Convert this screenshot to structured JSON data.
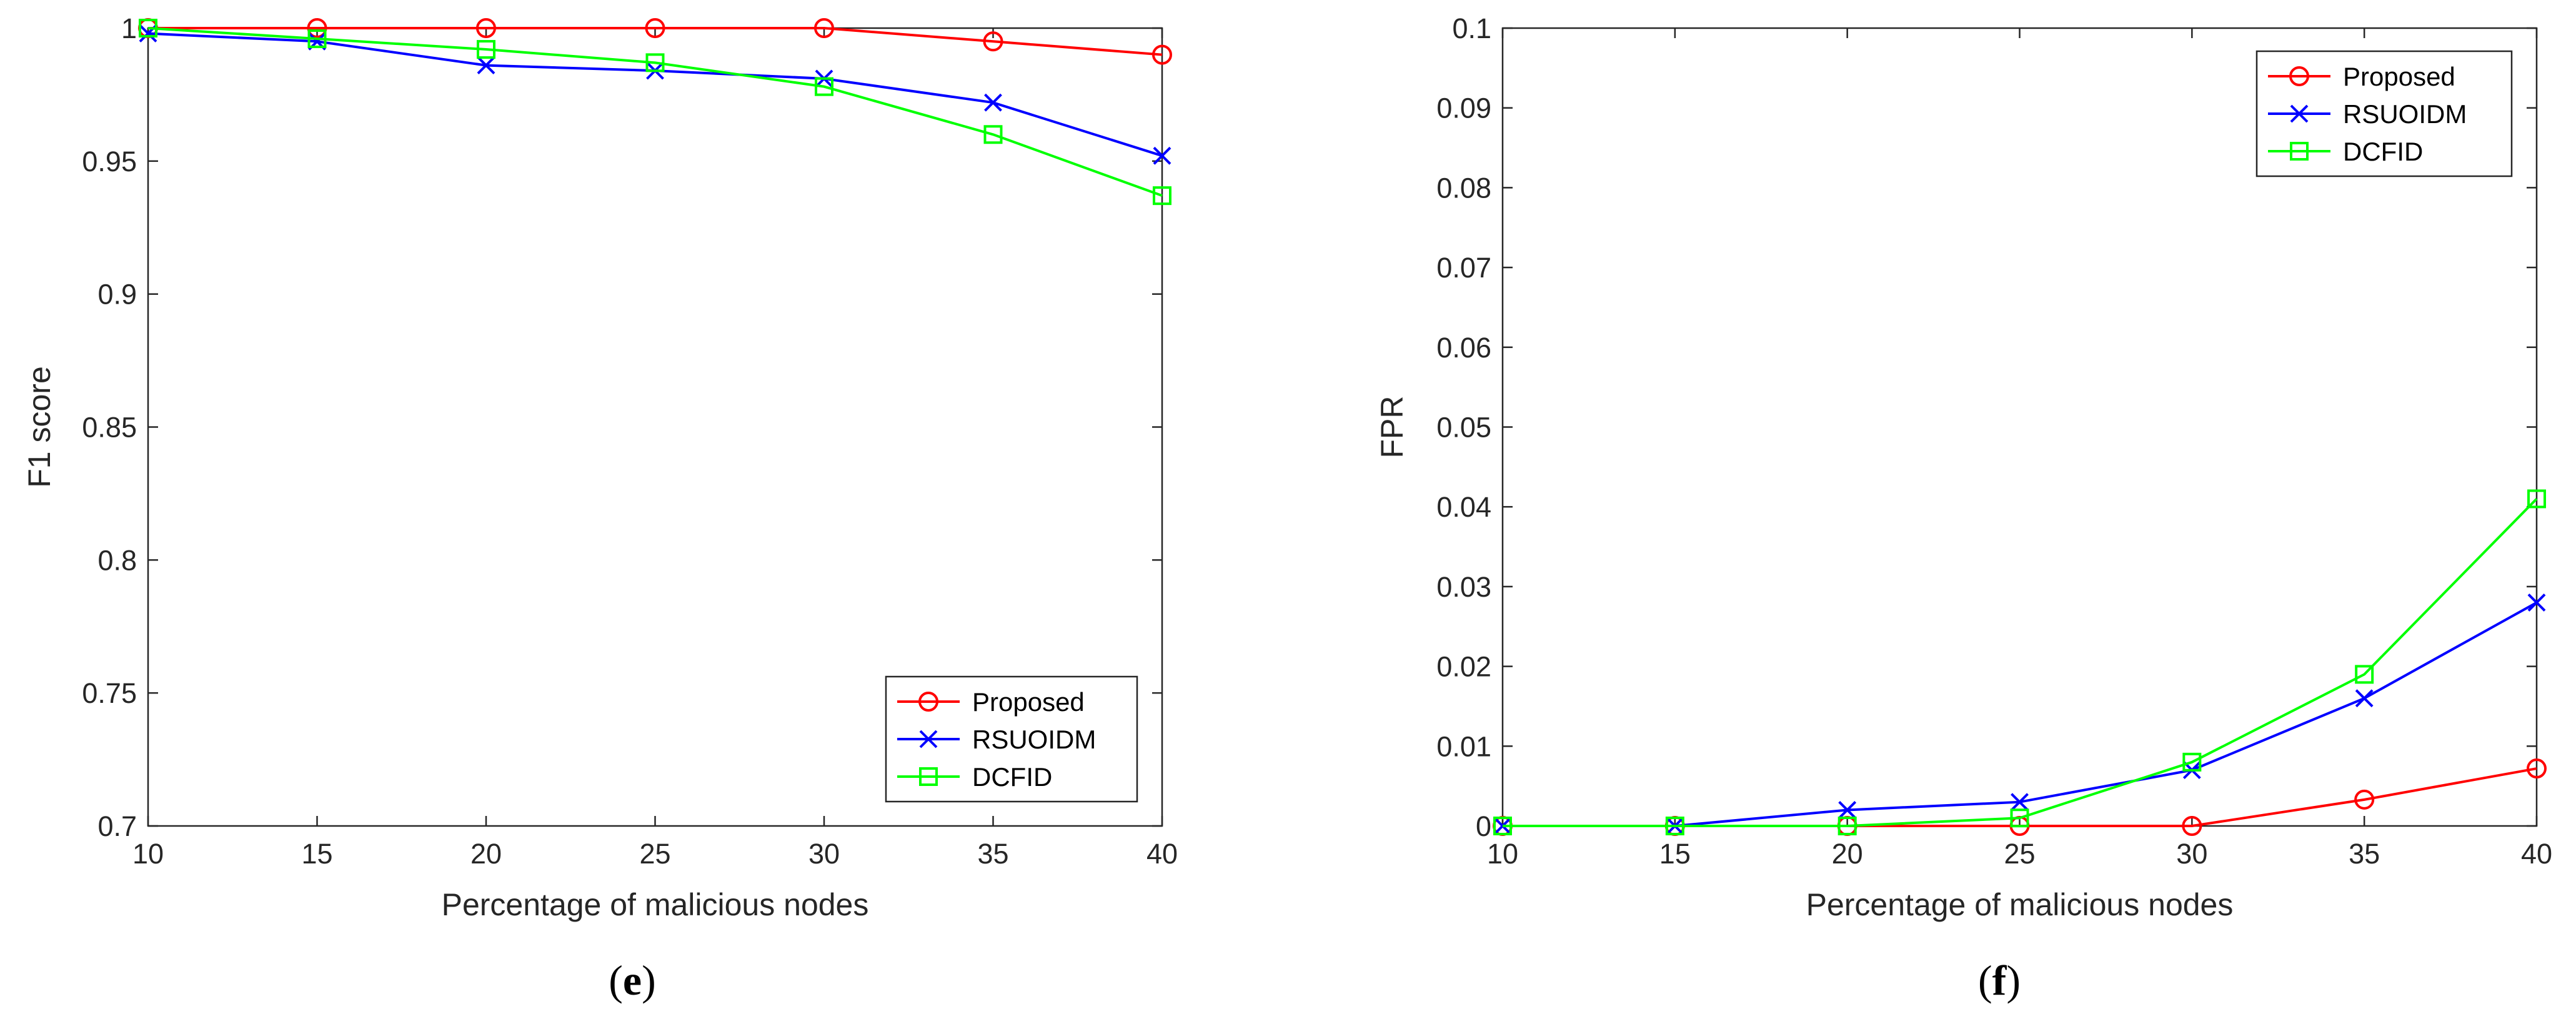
{
  "colors": {
    "proposed": "#ff0000",
    "rsuoidm": "#0000ff",
    "dcfid": "#00ff00",
    "axis": "#262626"
  },
  "chart_data": [
    {
      "type": "line",
      "caption": {
        "open": "(",
        "letter": "e",
        "close": ")"
      },
      "title": "",
      "xlabel": "Percentage of malicious nodes",
      "ylabel": "F1 score",
      "xlim": [
        10,
        40
      ],
      "ylim": [
        0.7,
        1.0
      ],
      "xticks": [
        10,
        15,
        20,
        25,
        30,
        35,
        40
      ],
      "xtick_labels": [
        "10",
        "15",
        "20",
        "25",
        "30",
        "35",
        "40"
      ],
      "yticks": [
        0.7,
        0.75,
        0.8,
        0.85,
        0.9,
        0.95,
        1.0
      ],
      "ytick_labels": [
        "0.7",
        "0.75",
        "0.8",
        "0.85",
        "0.9",
        "0.95",
        "1"
      ],
      "legend_position": "bottom-right",
      "x": [
        10,
        15,
        20,
        25,
        30,
        35,
        40
      ],
      "series": [
        {
          "name": "Proposed",
          "marker": "circle",
          "color_key": "proposed",
          "values": [
            1.0,
            1.0,
            1.0,
            1.0,
            1.0,
            0.995,
            0.99
          ]
        },
        {
          "name": "RSUOIDM",
          "marker": "x",
          "color_key": "rsuoidm",
          "values": [
            0.998,
            0.995,
            0.986,
            0.984,
            0.981,
            0.972,
            0.952
          ]
        },
        {
          "name": "DCFID",
          "marker": "square",
          "color_key": "dcfid",
          "values": [
            1.0,
            0.996,
            0.992,
            0.987,
            0.978,
            0.96,
            0.937
          ]
        }
      ]
    },
    {
      "type": "line",
      "caption": {
        "open": "(",
        "letter": "f",
        "close": ")"
      },
      "title": "",
      "xlabel": "Percentage of malicious nodes",
      "ylabel": "FPR",
      "xlim": [
        10,
        40
      ],
      "ylim": [
        0,
        0.1
      ],
      "xticks": [
        10,
        15,
        20,
        25,
        30,
        35,
        40
      ],
      "xtick_labels": [
        "10",
        "15",
        "20",
        "25",
        "30",
        "35",
        "40"
      ],
      "yticks": [
        0,
        0.01,
        0.02,
        0.03,
        0.04,
        0.05,
        0.06,
        0.07,
        0.08,
        0.09,
        0.1
      ],
      "ytick_labels": [
        "0",
        "0.01",
        "0.02",
        "0.03",
        "0.04",
        "0.05",
        "0.06",
        "0.07",
        "0.08",
        "0.09",
        "0.1"
      ],
      "legend_position": "top-right",
      "x": [
        10,
        15,
        20,
        25,
        30,
        35,
        40
      ],
      "series": [
        {
          "name": "Proposed",
          "marker": "circle",
          "color_key": "proposed",
          "values": [
            0,
            0,
            0,
            0,
            0,
            0.0033,
            0.0072
          ]
        },
        {
          "name": "RSUOIDM",
          "marker": "x",
          "color_key": "rsuoidm",
          "values": [
            0,
            0,
            0.002,
            0.003,
            0.007,
            0.016,
            0.028
          ]
        },
        {
          "name": "DCFID",
          "marker": "square",
          "color_key": "dcfid",
          "values": [
            0,
            0,
            0,
            0.001,
            0.008,
            0.019,
            0.041
          ]
        }
      ]
    }
  ]
}
